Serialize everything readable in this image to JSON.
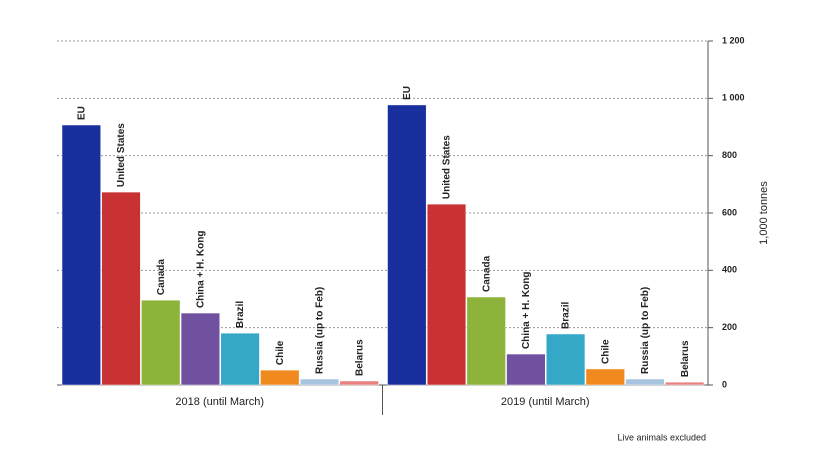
{
  "chart_data": {
    "type": "bar",
    "y_label": "1,000 tonnes",
    "note": "Live animals excluded",
    "categories": [
      "2018 (until March)",
      "2019 (until March)"
    ],
    "series": [
      {
        "name": "EU",
        "color": "#1a2f9e",
        "values": [
          907,
          977
        ]
      },
      {
        "name": "United States",
        "color": "#c83232",
        "values": [
          673,
          631
        ]
      },
      {
        "name": "Canada",
        "color": "#8db33a",
        "values": [
          296,
          307
        ]
      },
      {
        "name": "China + H. Kong",
        "color": "#7051a0",
        "values": [
          251,
          108
        ]
      },
      {
        "name": "Brazil",
        "color": "#35a8c8",
        "values": [
          181,
          178
        ]
      },
      {
        "name": "Chile",
        "color": "#f08a1e",
        "values": [
          52,
          56
        ]
      },
      {
        "name": "Russia (up to Feb)",
        "color": "#a8c4e0",
        "values": [
          21,
          21
        ]
      },
      {
        "name": "Belarus",
        "color": "#e88080",
        "values": [
          14,
          10
        ]
      }
    ],
    "ylim": [
      0,
      1200
    ],
    "yticks": [
      0,
      200,
      400,
      600,
      800,
      {
        "value": 1000,
        "label": "1 000"
      },
      {
        "value": 1200,
        "label": "1 200"
      }
    ],
    "grid": true
  }
}
